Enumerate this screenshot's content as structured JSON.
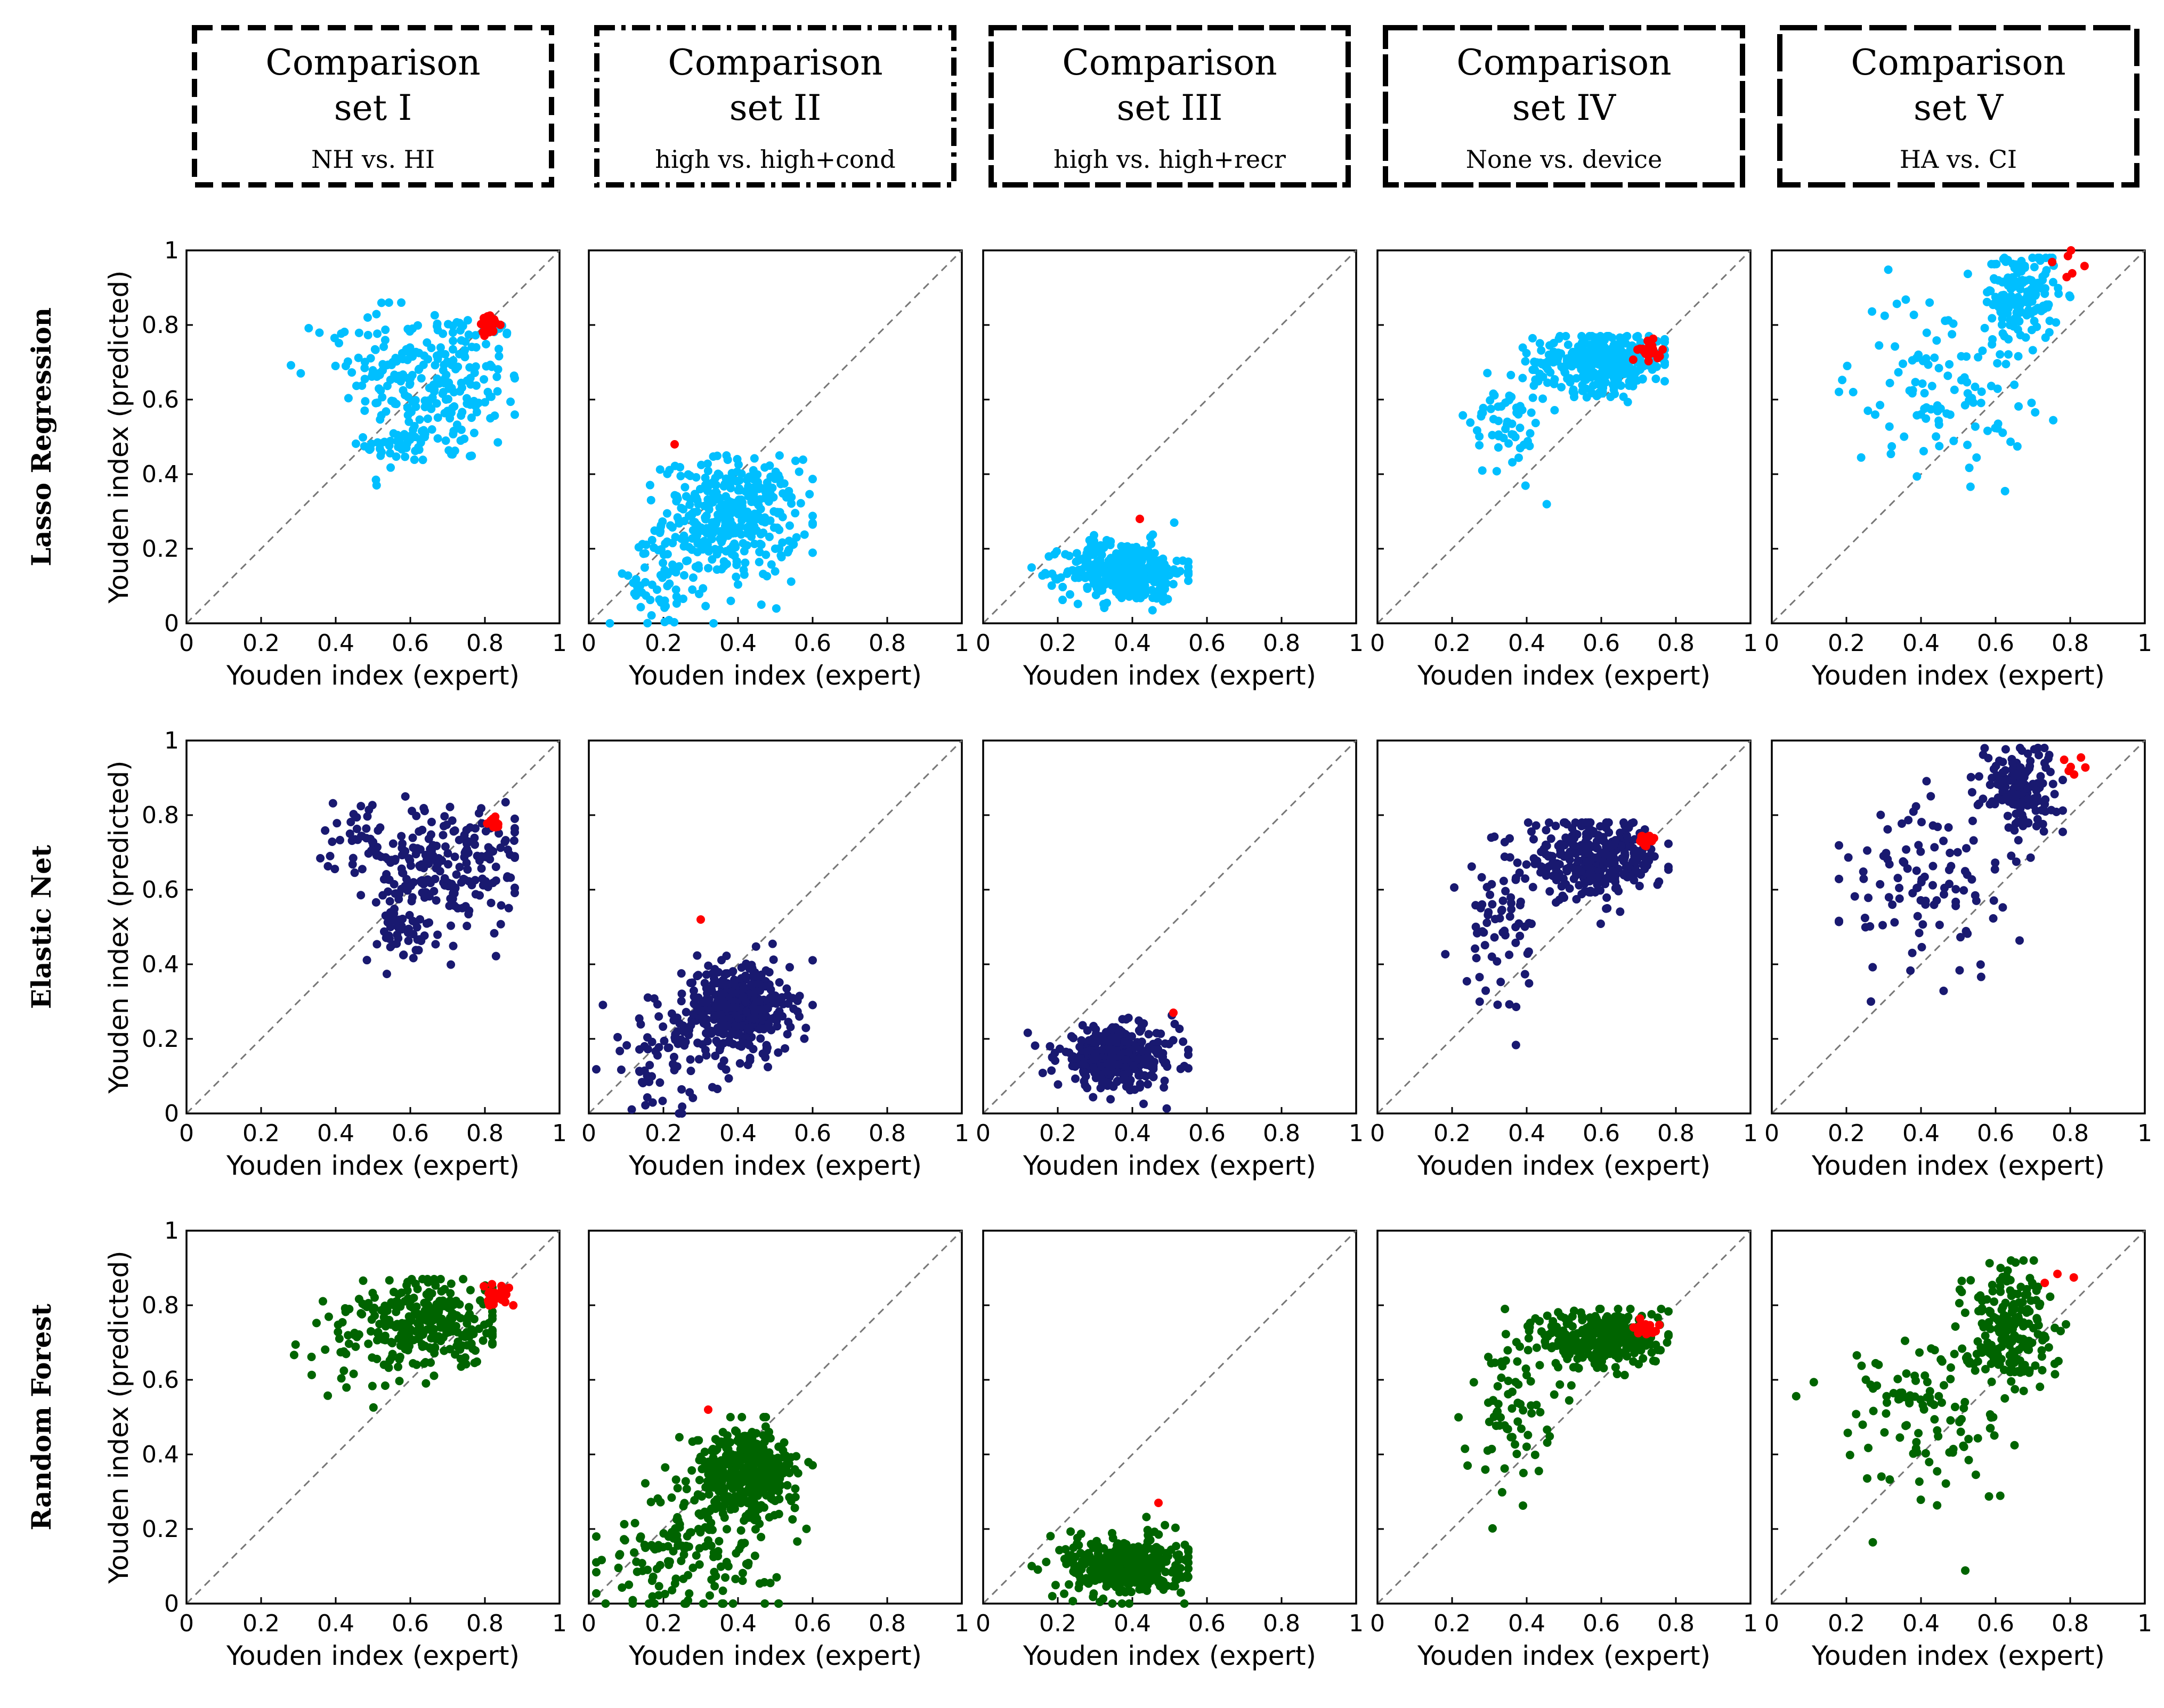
{
  "headers": [
    {
      "title1": "Comparison",
      "title2": "set I",
      "subtitle": "NH  vs.  HI",
      "dash": "34,16"
    },
    {
      "title1": "Comparison",
      "title2": "set II",
      "subtitle": "high  vs.  high+cond",
      "dash": "34,12,8,12"
    },
    {
      "title1": "Comparison",
      "title2": "set III",
      "subtitle": "high  vs.  high+recr",
      "dash": "48,10"
    },
    {
      "title1": "Comparison",
      "title2": "set IV",
      "subtitle": "None  vs.  device",
      "dash": "60,10"
    },
    {
      "title1": "Comparison",
      "title2": "set V",
      "subtitle": "HA  vs.  CI",
      "dash": "70,14"
    }
  ],
  "rows": [
    {
      "label": "Lasso Regression",
      "color": "#00bfff"
    },
    {
      "label": "Elastic Net",
      "color": "#191970"
    },
    {
      "label": "Random Forest",
      "color": "#006400"
    }
  ],
  "highlight_color": "#ff0000",
  "axes": {
    "xlabel": "Youden index (expert)",
    "ylabel": "Youden index (predicted)",
    "xticks": [
      "0",
      "0.2",
      "0.4",
      "0.6",
      "0.8",
      "1"
    ],
    "yticks": [
      "0",
      "0.2",
      "0.4",
      "0.6",
      "0.8",
      "1"
    ]
  },
  "chart_data": {
    "type": "scatter",
    "xlim": [
      0,
      1
    ],
    "ylim": [
      0,
      1
    ],
    "diagonal": "y = x (dashed)",
    "panels": [
      [
        {
          "row": "Lasso Regression",
          "set": "I",
          "clusters": [
            {
              "cx": 0.68,
              "cy": 0.64,
              "sx": 0.11,
              "sy": 0.11,
              "n": 220
            },
            {
              "cx": 0.48,
              "cy": 0.72,
              "sx": 0.07,
              "sy": 0.06,
              "n": 40
            },
            {
              "cx": 0.58,
              "cy": 0.48,
              "sx": 0.05,
              "sy": 0.04,
              "n": 35
            }
          ],
          "xr": [
            0.28,
            0.88
          ],
          "yr": [
            0.37,
            0.86
          ],
          "highlight": {
            "x": 0.81,
            "y": 0.8,
            "spread": 0.025,
            "n": 22
          }
        },
        {
          "row": "Lasso Regression",
          "set": "II",
          "clusters": [
            {
              "cx": 0.38,
              "cy": 0.28,
              "sx": 0.09,
              "sy": 0.08,
              "n": 380
            },
            {
              "cx": 0.18,
              "cy": 0.1,
              "sx": 0.07,
              "sy": 0.06,
              "n": 50
            }
          ],
          "xr": [
            0.02,
            0.6
          ],
          "yr": [
            0.0,
            0.45
          ],
          "highlight": {
            "x": 0.23,
            "y": 0.48,
            "spread": 0.0,
            "n": 1
          }
        },
        {
          "row": "Lasso Regression",
          "set": "III",
          "clusters": [
            {
              "cx": 0.38,
              "cy": 0.14,
              "sx": 0.08,
              "sy": 0.04,
              "n": 360
            }
          ],
          "xr": [
            0.05,
            0.55
          ],
          "yr": [
            0.02,
            0.27
          ],
          "highlight": {
            "x": 0.42,
            "y": 0.28,
            "spread": 0.0,
            "n": 1
          }
        },
        {
          "row": "Lasso Regression",
          "set": "IV",
          "clusters": [
            {
              "cx": 0.6,
              "cy": 0.7,
              "sx": 0.09,
              "sy": 0.04,
              "n": 320
            },
            {
              "cx": 0.35,
              "cy": 0.55,
              "sx": 0.05,
              "sy": 0.08,
              "n": 60
            }
          ],
          "xr": [
            0.15,
            0.77
          ],
          "yr": [
            0.06,
            0.77
          ],
          "highlight": {
            "x": 0.73,
            "y": 0.73,
            "spread": 0.025,
            "n": 26
          }
        },
        {
          "row": "Lasso Regression",
          "set": "V",
          "clusters": [
            {
              "cx": 0.67,
              "cy": 0.88,
              "sx": 0.05,
              "sy": 0.06,
              "n": 160
            },
            {
              "cx": 0.45,
              "cy": 0.65,
              "sx": 0.12,
              "sy": 0.12,
              "n": 110
            }
          ],
          "xr": [
            0.18,
            0.8
          ],
          "yr": [
            0.2,
            0.98
          ],
          "highlight": {
            "x": 0.8,
            "y": 0.95,
            "spread": 0.04,
            "n": 6
          }
        }
      ],
      [
        {
          "row": "Elastic Net",
          "set": "I",
          "clusters": [
            {
              "cx": 0.7,
              "cy": 0.66,
              "sx": 0.1,
              "sy": 0.09,
              "n": 220
            },
            {
              "cx": 0.47,
              "cy": 0.74,
              "sx": 0.06,
              "sy": 0.05,
              "n": 40
            },
            {
              "cx": 0.57,
              "cy": 0.48,
              "sx": 0.05,
              "sy": 0.04,
              "n": 40
            }
          ],
          "xr": [
            0.28,
            0.88
          ],
          "yr": [
            0.37,
            0.85
          ],
          "highlight": {
            "x": 0.82,
            "y": 0.78,
            "spread": 0.02,
            "n": 16
          }
        },
        {
          "row": "Elastic Net",
          "set": "II",
          "clusters": [
            {
              "cx": 0.4,
              "cy": 0.28,
              "sx": 0.07,
              "sy": 0.06,
              "n": 420
            },
            {
              "cx": 0.2,
              "cy": 0.15,
              "sx": 0.08,
              "sy": 0.08,
              "n": 70
            }
          ],
          "xr": [
            0.02,
            0.6
          ],
          "yr": [
            0.0,
            0.46
          ],
          "highlight": {
            "x": 0.3,
            "y": 0.52,
            "spread": 0.0,
            "n": 1
          }
        },
        {
          "row": "Elastic Net",
          "set": "III",
          "clusters": [
            {
              "cx": 0.36,
              "cy": 0.15,
              "sx": 0.08,
              "sy": 0.04,
              "n": 360
            }
          ],
          "xr": [
            0.05,
            0.55
          ],
          "yr": [
            0.0,
            0.28
          ],
          "highlight": {
            "x": 0.51,
            "y": 0.27,
            "spread": 0.0,
            "n": 1
          }
        },
        {
          "row": "Elastic Net",
          "set": "IV",
          "clusters": [
            {
              "cx": 0.58,
              "cy": 0.68,
              "sx": 0.09,
              "sy": 0.05,
              "n": 320
            },
            {
              "cx": 0.32,
              "cy": 0.5,
              "sx": 0.05,
              "sy": 0.09,
              "n": 60
            }
          ],
          "xr": [
            0.15,
            0.78
          ],
          "yr": [
            0.06,
            0.78
          ],
          "highlight": {
            "x": 0.72,
            "y": 0.73,
            "spread": 0.02,
            "n": 22
          }
        },
        {
          "row": "Elastic Net",
          "set": "V",
          "clusters": [
            {
              "cx": 0.66,
              "cy": 0.88,
              "sx": 0.05,
              "sy": 0.06,
              "n": 150
            },
            {
              "cx": 0.42,
              "cy": 0.6,
              "sx": 0.12,
              "sy": 0.12,
              "n": 100
            }
          ],
          "xr": [
            0.18,
            0.78
          ],
          "yr": [
            0.3,
            0.98
          ],
          "highlight": {
            "x": 0.8,
            "y": 0.94,
            "spread": 0.04,
            "n": 6
          }
        }
      ],
      [
        {
          "row": "Random Forest",
          "set": "I",
          "clusters": [
            {
              "cx": 0.66,
              "cy": 0.75,
              "sx": 0.09,
              "sy": 0.06,
              "n": 260
            },
            {
              "cx": 0.45,
              "cy": 0.7,
              "sx": 0.07,
              "sy": 0.07,
              "n": 45
            }
          ],
          "xr": [
            0.28,
            0.82
          ],
          "yr": [
            0.44,
            0.87
          ],
          "highlight": {
            "x": 0.83,
            "y": 0.82,
            "spread": 0.03,
            "n": 28
          }
        },
        {
          "row": "Random Forest",
          "set": "II",
          "clusters": [
            {
              "cx": 0.42,
              "cy": 0.35,
              "sx": 0.07,
              "sy": 0.06,
              "n": 360
            },
            {
              "cx": 0.28,
              "cy": 0.15,
              "sx": 0.12,
              "sy": 0.09,
              "n": 160
            }
          ],
          "xr": [
            0.02,
            0.6
          ],
          "yr": [
            0.0,
            0.5
          ],
          "highlight": {
            "x": 0.32,
            "y": 0.52,
            "spread": 0.0,
            "n": 1
          }
        },
        {
          "row": "Random Forest",
          "set": "III",
          "clusters": [
            {
              "cx": 0.38,
              "cy": 0.1,
              "sx": 0.08,
              "sy": 0.04,
              "n": 360
            }
          ],
          "xr": [
            0.05,
            0.55
          ],
          "yr": [
            0.0,
            0.25
          ],
          "highlight": {
            "x": 0.47,
            "y": 0.27,
            "spread": 0.0,
            "n": 1
          }
        },
        {
          "row": "Random Forest",
          "set": "IV",
          "clusters": [
            {
              "cx": 0.6,
              "cy": 0.71,
              "sx": 0.08,
              "sy": 0.04,
              "n": 320
            },
            {
              "cx": 0.35,
              "cy": 0.52,
              "sx": 0.06,
              "sy": 0.09,
              "n": 70
            }
          ],
          "xr": [
            0.15,
            0.78
          ],
          "yr": [
            0.08,
            0.79
          ],
          "highlight": {
            "x": 0.72,
            "y": 0.74,
            "spread": 0.02,
            "n": 22
          }
        },
        {
          "row": "Random Forest",
          "set": "V",
          "clusters": [
            {
              "cx": 0.63,
              "cy": 0.75,
              "sx": 0.06,
              "sy": 0.08,
              "n": 200
            },
            {
              "cx": 0.4,
              "cy": 0.5,
              "sx": 0.12,
              "sy": 0.12,
              "n": 110
            }
          ],
          "xr": [
            0.02,
            0.85
          ],
          "yr": [
            0.0,
            0.92
          ],
          "highlight": {
            "x": 0.78,
            "y": 0.88,
            "spread": 0.04,
            "n": 3
          }
        }
      ]
    ]
  }
}
